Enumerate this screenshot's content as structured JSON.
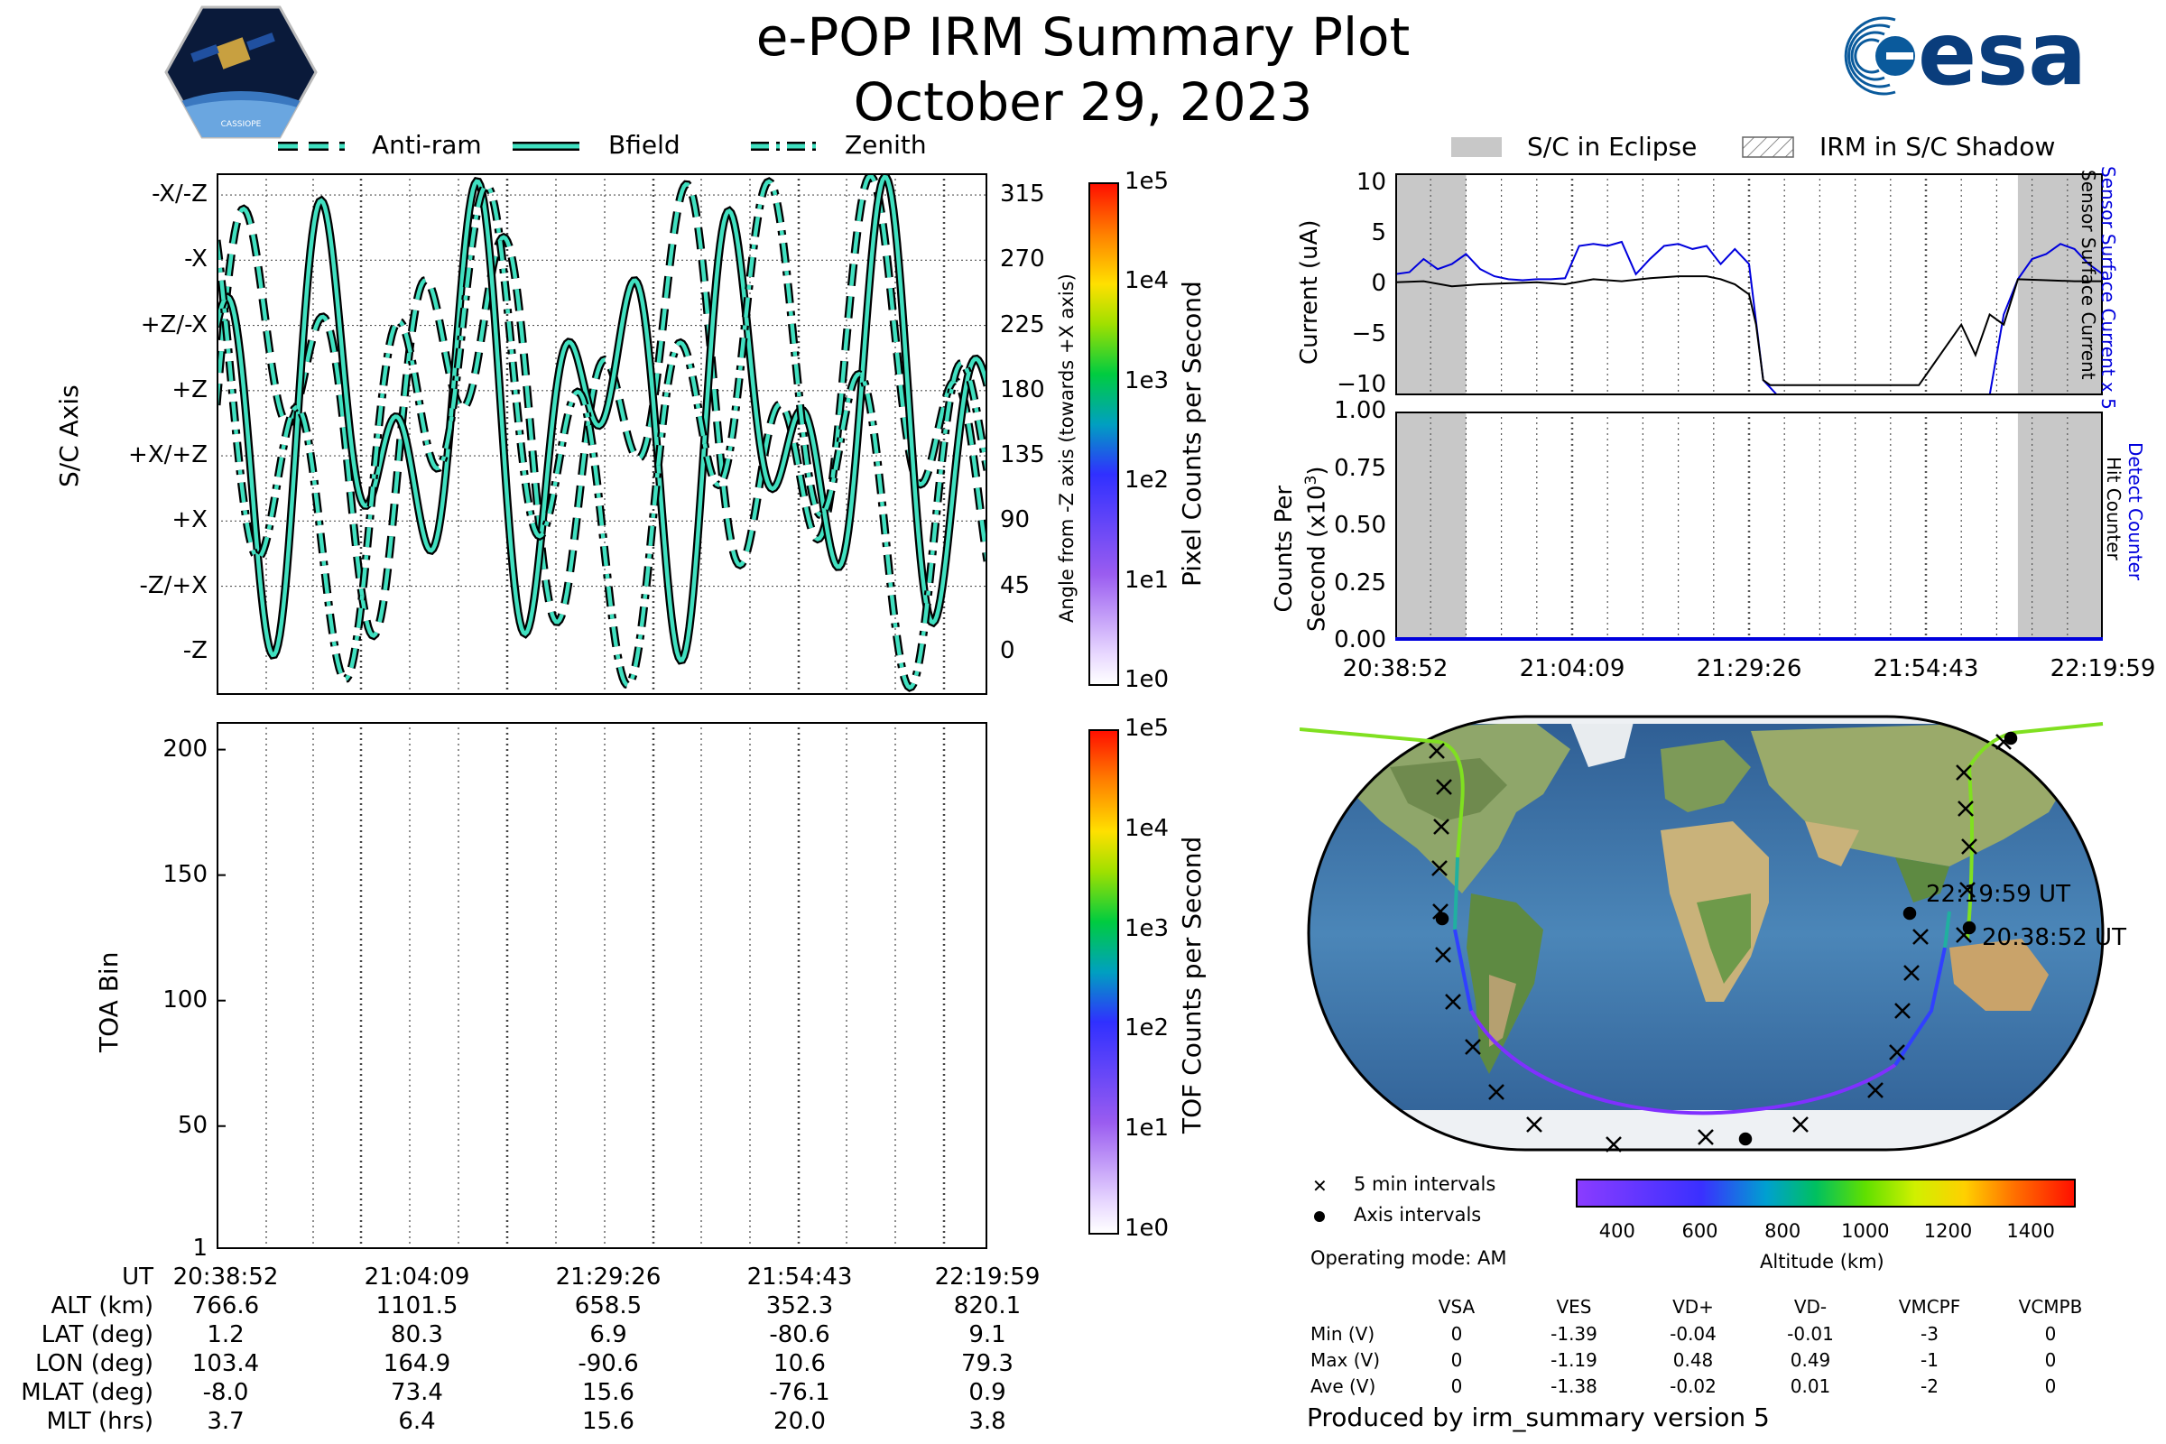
{
  "header": {
    "title": "e-POP IRM Summary Plot",
    "date": "October 29, 2023",
    "cassiope_logo_text": "CASSIOPE",
    "esa_logo_text": "esa"
  },
  "legend_top_left": {
    "items": [
      "Anti-ram",
      "Bfield",
      "Zenith"
    ]
  },
  "legend_top_right": {
    "items": [
      "S/C in Eclipse",
      "IRM in S/C Shadow"
    ]
  },
  "panel_axis": {
    "ylabel": "S/C Axis",
    "yticks": [
      "-X/-Z",
      "-X",
      "+Z/-X",
      "+Z",
      "+X/+Z",
      "+X",
      "-Z/+X",
      "-Z"
    ],
    "right_ticks": [
      "315",
      "270",
      "225",
      "180",
      "135",
      "90",
      "45",
      "0"
    ],
    "right_label": "Angle from -Z axis (towards +X axis)",
    "colorbar_label": "Pixel Counts per Second",
    "colorbar_ticks": [
      "1e5",
      "1e4",
      "1e3",
      "1e2",
      "1e1",
      "1e0"
    ]
  },
  "panel_toa": {
    "ylabel": "TOA Bin",
    "yticks": [
      "200",
      "150",
      "100",
      "50",
      "1"
    ],
    "colorbar_label": "TOF Counts per Second",
    "colorbar_ticks": [
      "1e5",
      "1e4",
      "1e3",
      "1e2",
      "1e1",
      "1e0"
    ]
  },
  "info_table": {
    "row_labels": [
      "UT",
      "ALT (km)",
      "LAT (deg)",
      "LON (deg)",
      "MLAT (deg)",
      "MLT (hrs)"
    ],
    "columns": [
      [
        "20:38:52",
        "766.6",
        "1.2",
        "103.4",
        "-8.0",
        "3.7"
      ],
      [
        "21:04:09",
        "1101.5",
        "80.3",
        "164.9",
        "73.4",
        "6.4"
      ],
      [
        "21:29:26",
        "658.5",
        "6.9",
        "-90.6",
        "15.6",
        "15.6"
      ],
      [
        "21:54:43",
        "352.3",
        "-80.6",
        "10.6",
        "-76.1",
        "20.0"
      ],
      [
        "22:19:59",
        "820.1",
        "9.1",
        "79.3",
        "0.9",
        "3.8"
      ]
    ]
  },
  "panel_current": {
    "ylabel": "Current (uA)",
    "yticks": [
      "10",
      "5",
      "0",
      "−5",
      "−10"
    ],
    "right_label_blue": "Sensor Surface Current x 5",
    "right_label_black": "Sensor Surface Current"
  },
  "panel_counts": {
    "ylabel_line1": "Counts Per",
    "ylabel_line2": "Second (x10",
    "ylabel_sup": "3",
    "ylabel_end": ")",
    "yticks": [
      "1.00",
      "0.75",
      "0.50",
      "0.25",
      "0.00"
    ],
    "xticks": [
      "20:38:52",
      "21:04:09",
      "21:29:26",
      "21:54:43",
      "22:19:59"
    ],
    "right_label_blue": "Detect Counter",
    "right_label_black": "Hit Counter"
  },
  "map": {
    "label_start": "20:38:52 UT",
    "label_end": "22:19:59 UT",
    "legend_cross": "5 min intervals",
    "legend_dot": "Axis intervals",
    "operating_mode": "Operating mode: AM",
    "colorbar_label": "Altitude (km)",
    "colorbar_ticks": [
      "400",
      "600",
      "800",
      "1000",
      "1200",
      "1400"
    ]
  },
  "voltage_table": {
    "headers": [
      "VSA",
      "VES",
      "VD+",
      "VD-",
      "VMCPF",
      "VCMPB"
    ],
    "rows": [
      {
        "label": "Min (V)",
        "values": [
          "0",
          "-1.39",
          "-0.04",
          "-0.01",
          "-3",
          "0"
        ]
      },
      {
        "label": "Max (V)",
        "values": [
          "0",
          "-1.19",
          "0.48",
          "0.49",
          "-1",
          "0"
        ]
      },
      {
        "label": "Ave (V)",
        "values": [
          "0",
          "-1.38",
          "-0.02",
          "0.01",
          "-2",
          "0"
        ]
      }
    ]
  },
  "footer": "Produced by irm_summary version 5",
  "chart_data": [
    {
      "type": "line",
      "panel": "S/C Axis",
      "series": [
        {
          "name": "Anti-ram"
        },
        {
          "name": "Bfield"
        },
        {
          "name": "Zenith"
        }
      ],
      "ylim": [
        0,
        330
      ],
      "xlabel": "UT",
      "ylabel": "S/C Axis"
    },
    {
      "type": "heatmap",
      "panel": "TOA Bin",
      "ylim": [
        1,
        210
      ],
      "ylabel": "TOA Bin"
    },
    {
      "type": "line",
      "panel": "Current",
      "ylim": [
        -11,
        11
      ],
      "ylabel": "Current (uA)",
      "eclipse_bands_fraction": [
        [
          0,
          0.1
        ],
        [
          0.88,
          1.0
        ]
      ],
      "series": [
        {
          "name": "Sensor Surface Current x 5",
          "color": "#0000dd",
          "x": [
            0,
            0.02,
            0.04,
            0.06,
            0.08,
            0.1,
            0.12,
            0.14,
            0.16,
            0.18,
            0.2,
            0.22,
            0.24,
            0.26,
            0.28,
            0.3,
            0.32,
            0.34,
            0.36,
            0.38,
            0.4,
            0.42,
            0.44,
            0.46,
            0.48,
            0.5,
            0.52,
            0.54,
            0.56,
            0.58,
            0.6,
            0.62,
            0.64,
            0.66,
            0.68,
            0.7,
            0.72,
            0.74,
            0.76,
            0.78,
            0.8,
            0.82,
            0.84,
            0.86,
            0.88,
            0.9,
            0.92,
            0.94,
            0.96,
            0.98,
            1.0
          ],
          "y": [
            1.0,
            1.2,
            2.5,
            1.5,
            2.0,
            3.0,
            1.5,
            0.8,
            0.5,
            0.4,
            0.5,
            0.5,
            0.6,
            3.8,
            4.0,
            3.8,
            4.2,
            1.0,
            2.5,
            3.8,
            4.0,
            3.5,
            3.8,
            2.0,
            3.5,
            2.0,
            -9.5,
            -11,
            -11,
            -11,
            -11,
            -11,
            -11,
            -11,
            -11,
            -11,
            -11,
            -11,
            -11,
            -11,
            -11,
            -11,
            -11,
            -3.0,
            0.5,
            2.5,
            3.0,
            4.0,
            3.5,
            2.0,
            1.0
          ]
        },
        {
          "name": "Sensor Surface Current",
          "color": "#000000",
          "x": [
            0,
            0.04,
            0.08,
            0.12,
            0.16,
            0.2,
            0.24,
            0.28,
            0.32,
            0.36,
            0.4,
            0.44,
            0.46,
            0.48,
            0.5,
            0.51,
            0.52,
            0.53,
            0.54,
            0.56,
            0.58,
            0.6,
            0.62,
            0.64,
            0.66,
            0.68,
            0.7,
            0.72,
            0.74,
            0.76,
            0.78,
            0.8,
            0.82,
            0.84,
            0.86,
            0.88,
            0.92,
            0.96,
            1.0
          ],
          "y": [
            0.2,
            0.3,
            -0.2,
            0.0,
            0.1,
            0.2,
            0.0,
            0.5,
            0.3,
            0.6,
            0.8,
            0.8,
            0.5,
            0.0,
            -1.0,
            -4.0,
            -9.5,
            -10,
            -10,
            -10,
            -10,
            -10,
            -10,
            -10,
            -10,
            -10,
            -10,
            -10,
            -10,
            -8.0,
            -6.0,
            -4.0,
            -7.0,
            -3.0,
            -4.0,
            0.5,
            0.4,
            0.3,
            0.3
          ]
        }
      ]
    },
    {
      "type": "line",
      "panel": "Counts",
      "ylim": [
        0,
        1.0
      ],
      "series": [
        {
          "name": "Detect Counter",
          "color": "#0000dd",
          "x": [
            0,
            1
          ],
          "y": [
            0,
            0
          ]
        },
        {
          "name": "Hit Counter",
          "color": "#000000",
          "x": [
            0,
            1
          ],
          "y": [
            0,
            0
          ]
        }
      ]
    }
  ]
}
